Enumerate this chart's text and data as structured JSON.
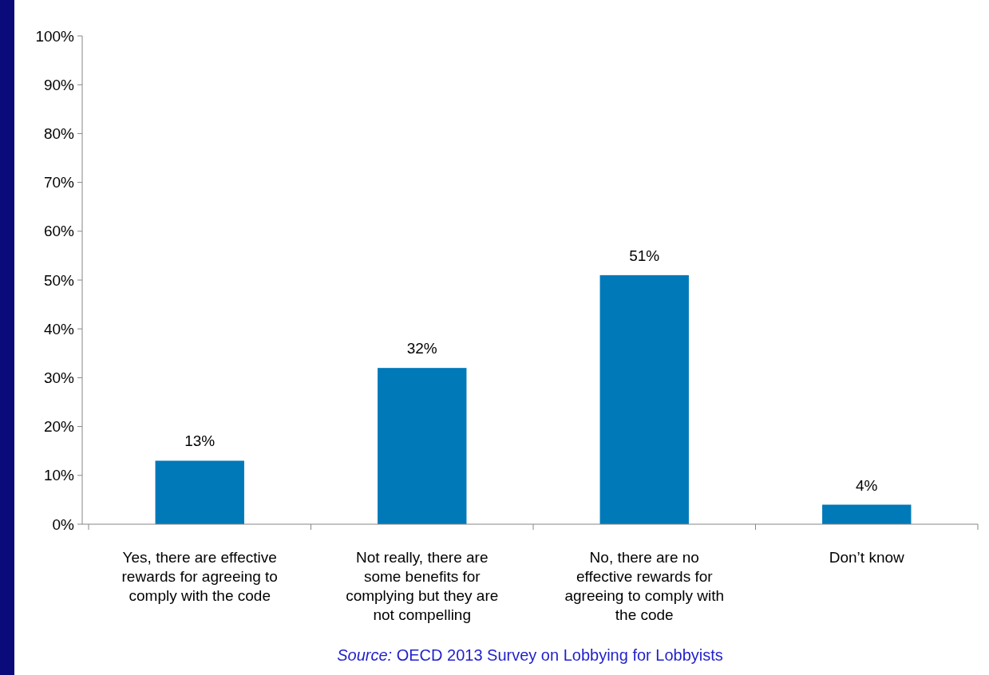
{
  "chart_data": {
    "type": "bar",
    "categories": [
      "Yes, there are effective rewards for agreeing to comply with the code",
      "Not really, there are some benefits for complying but they are not compelling",
      "No, there are no effective rewards for agreeing to comply with the code",
      "Don’t know"
    ],
    "values": [
      13,
      32,
      51,
      4
    ],
    "value_labels": [
      "13%",
      "32%",
      "51%",
      "4%"
    ],
    "color": "#0079b8",
    "ylim": [
      0,
      100
    ],
    "yticks": [
      {
        "value": 0,
        "label": "0%"
      },
      {
        "value": 10,
        "label": "10%"
      },
      {
        "value": 20,
        "label": "20%"
      },
      {
        "value": 30,
        "label": "30%"
      },
      {
        "value": 40,
        "label": "40%"
      },
      {
        "value": 50,
        "label": "50%"
      },
      {
        "value": 60,
        "label": "60%"
      },
      {
        "value": 70,
        "label": "70%"
      },
      {
        "value": 80,
        "label": "80%"
      },
      {
        "value": 90,
        "label": "90%"
      },
      {
        "value": 100,
        "label": "100%"
      }
    ],
    "annotations": [
      "Source: OECD 2013 Survey on Lobbying for Lobbyists"
    ]
  }
}
